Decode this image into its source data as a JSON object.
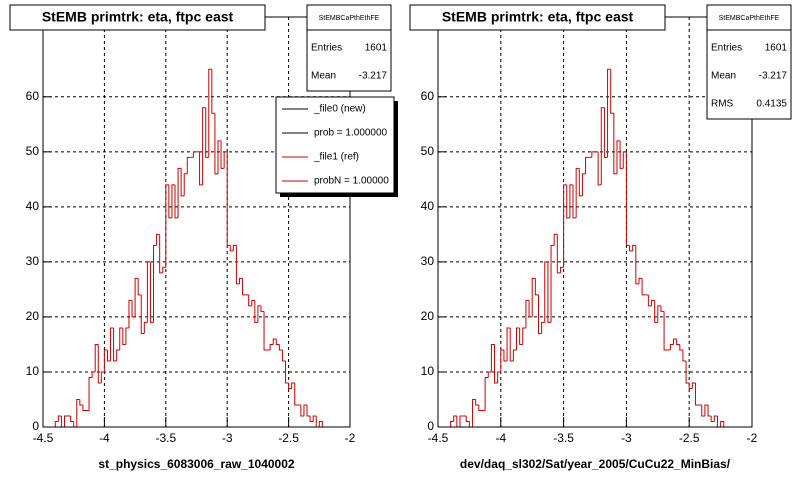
{
  "chart_data": [
    {
      "type": "histogram",
      "title": "StEMB primtrk: eta, ftpc east",
      "x_label": "st_physics_6083006_raw_1040002",
      "bins": [
        -4.4,
        -4.375,
        -4.35,
        -4.325,
        -4.3,
        -4.275,
        -4.25,
        -4.225,
        -4.2,
        -4.175,
        -4.15,
        -4.125,
        -4.1,
        -4.075,
        -4.05,
        -4.025,
        -4,
        -3.975,
        -3.95,
        -3.925,
        -3.9,
        -3.875,
        -3.85,
        -3.825,
        -3.8,
        -3.775,
        -3.75,
        -3.725,
        -3.7,
        -3.675,
        -3.65,
        -3.625,
        -3.6,
        -3.575,
        -3.55,
        -3.525,
        -3.5,
        -3.475,
        -3.45,
        -3.425,
        -3.4,
        -3.375,
        -3.35,
        -3.325,
        -3.3,
        -3.275,
        -3.25,
        -3.225,
        -3.2,
        -3.175,
        -3.15,
        -3.125,
        -3.1,
        -3.075,
        -3.05,
        -3.025,
        -3,
        -2.975,
        -2.95,
        -2.925,
        -2.9,
        -2.875,
        -2.85,
        -2.825,
        -2.8,
        -2.775,
        -2.75,
        -2.725,
        -2.7,
        -2.675,
        -2.65,
        -2.625,
        -2.6,
        -2.575,
        -2.55,
        -2.525,
        -2.5,
        -2.475,
        -2.45,
        -2.425,
        -2.4,
        -2.375,
        -2.35,
        -2.325,
        -2.3,
        -2.275,
        -2.25,
        -2.225
      ],
      "values": [
        1,
        2,
        0,
        2,
        2,
        1,
        0,
        5,
        4,
        3,
        3,
        9,
        10,
        15,
        8,
        10,
        14,
        12,
        18,
        12,
        14,
        18,
        15,
        18,
        23,
        20,
        27,
        24,
        17,
        19,
        30,
        19,
        33,
        35,
        28,
        29,
        44,
        38,
        44,
        38,
        47,
        42,
        46,
        49,
        49,
        50,
        50,
        44,
        58,
        49,
        65,
        57,
        46,
        52,
        47,
        50,
        33,
        32,
        33,
        26,
        27,
        24,
        24,
        22,
        23,
        19,
        22,
        21,
        14,
        14,
        15,
        16,
        15,
        14,
        12,
        8,
        7,
        8,
        4,
        4,
        2,
        4,
        2,
        1,
        2,
        0,
        1
      ],
      "color": "#d00000",
      "xlim": [
        -4.5,
        -2
      ],
      "xticks": [
        -4.5,
        -4,
        -3.5,
        -3,
        -2.5,
        -2
      ],
      "ylim": [
        0,
        74.5
      ],
      "yticks": [
        0,
        10,
        20,
        30,
        40,
        50,
        60
      ],
      "grid": true,
      "stats": {
        "title": "StEMBCaPthEthFE",
        "rows": [
          {
            "label": "Entries",
            "value": 1601
          },
          {
            "label": "Mean",
            "value": -3.217
          }
        ]
      },
      "legend": [
        {
          "name": "_file0 (new)",
          "color": "#000000"
        },
        {
          "name": "prob = 1.000000",
          "color": "#000000"
        },
        {
          "name": "_file1 (ref)",
          "color": "#d00000"
        },
        {
          "name": "probN = 1.00000",
          "color": "#d00000"
        }
      ]
    },
    {
      "type": "histogram",
      "title": "StEMB primtrk: eta, ftpc east",
      "x_label": "dev/daq_sl302/Sat/year_2005/CuCu22_MinBias/",
      "bins": [
        -4.4,
        -4.375,
        -4.35,
        -4.325,
        -4.3,
        -4.275,
        -4.25,
        -4.225,
        -4.2,
        -4.175,
        -4.15,
        -4.125,
        -4.1,
        -4.075,
        -4.05,
        -4.025,
        -4,
        -3.975,
        -3.95,
        -3.925,
        -3.9,
        -3.875,
        -3.85,
        -3.825,
        -3.8,
        -3.775,
        -3.75,
        -3.725,
        -3.7,
        -3.675,
        -3.65,
        -3.625,
        -3.6,
        -3.575,
        -3.55,
        -3.525,
        -3.5,
        -3.475,
        -3.45,
        -3.425,
        -3.4,
        -3.375,
        -3.35,
        -3.325,
        -3.3,
        -3.275,
        -3.25,
        -3.225,
        -3.2,
        -3.175,
        -3.15,
        -3.125,
        -3.1,
        -3.075,
        -3.05,
        -3.025,
        -3,
        -2.975,
        -2.95,
        -2.925,
        -2.9,
        -2.875,
        -2.85,
        -2.825,
        -2.8,
        -2.775,
        -2.75,
        -2.725,
        -2.7,
        -2.675,
        -2.65,
        -2.625,
        -2.6,
        -2.575,
        -2.55,
        -2.525,
        -2.5,
        -2.475,
        -2.45,
        -2.425,
        -2.4,
        -2.375,
        -2.35,
        -2.325,
        -2.3,
        -2.275,
        -2.25,
        -2.225
      ],
      "values": [
        1,
        2,
        0,
        2,
        2,
        1,
        0,
        5,
        4,
        3,
        3,
        9,
        10,
        15,
        8,
        10,
        14,
        12,
        18,
        12,
        14,
        18,
        15,
        18,
        23,
        20,
        27,
        24,
        17,
        19,
        30,
        19,
        33,
        35,
        28,
        29,
        44,
        38,
        44,
        38,
        47,
        42,
        46,
        49,
        49,
        50,
        50,
        44,
        58,
        49,
        65,
        57,
        46,
        52,
        47,
        50,
        33,
        32,
        33,
        26,
        27,
        24,
        24,
        22,
        23,
        19,
        22,
        21,
        14,
        14,
        15,
        16,
        15,
        14,
        12,
        8,
        7,
        8,
        4,
        4,
        2,
        4,
        2,
        1,
        2,
        0,
        1
      ],
      "color": "#d00000",
      "xlim": [
        -4.5,
        -2
      ],
      "xticks": [
        -4.5,
        -4,
        -3.5,
        -3,
        -2.5,
        -2
      ],
      "ylim": [
        0,
        74.5
      ],
      "yticks": [
        0,
        10,
        20,
        30,
        40,
        50,
        60
      ],
      "grid": true,
      "stats": {
        "title": "StEMBCaPthEthFE",
        "rows": [
          {
            "label": "Entries",
            "value": 1601
          },
          {
            "label": "Mean",
            "value": -3.217
          },
          {
            "label": "RMS",
            "value": 0.4135
          }
        ]
      }
    }
  ]
}
